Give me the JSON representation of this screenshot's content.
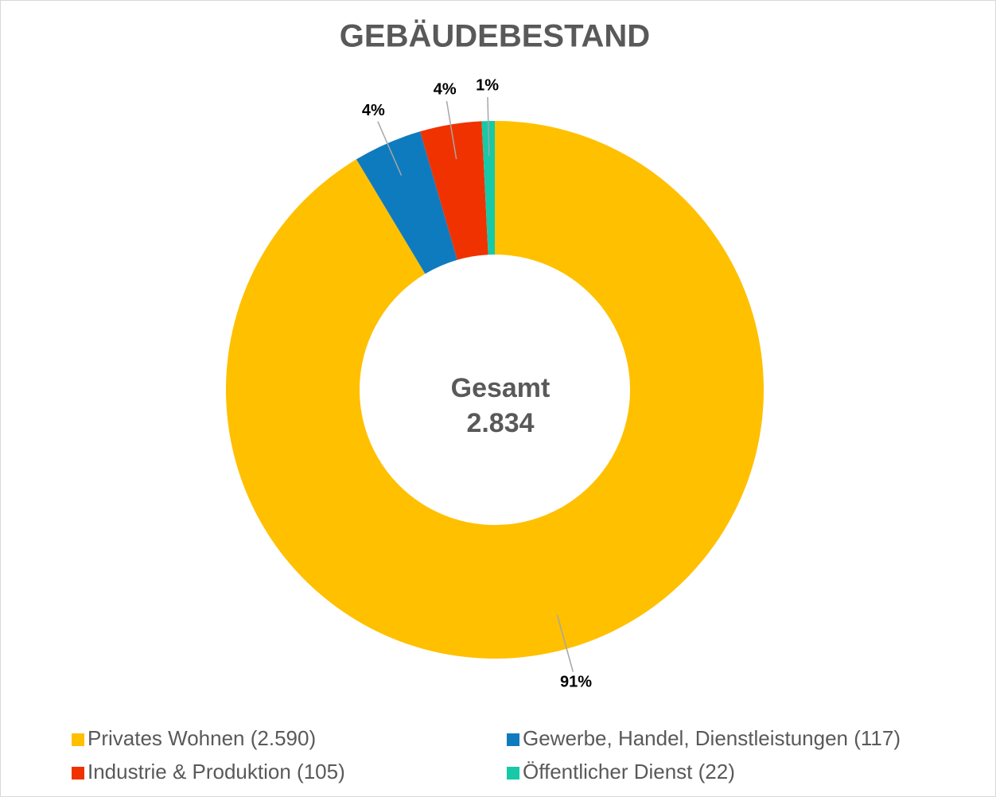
{
  "chart_data": {
    "type": "pie",
    "title": "GEBÄUDEBESTAND",
    "center_label": [
      "Gesamt",
      "2.834"
    ],
    "categories": [
      "Privates Wohnen (2.590)",
      "Gewerbe, Handel, Dienstleistungen (117)",
      "Industrie & Produktion (105)",
      "Öffentlicher Dienst (22)"
    ],
    "values": [
      91.39,
      4.13,
      3.7,
      0.78
    ],
    "value_labels": [
      "91%",
      "4%",
      "4%",
      "1%"
    ],
    "colors": [
      "#FFC000",
      "#0F7BBF",
      "#F03200",
      "#17C9A6"
    ],
    "legend": "bottom"
  }
}
